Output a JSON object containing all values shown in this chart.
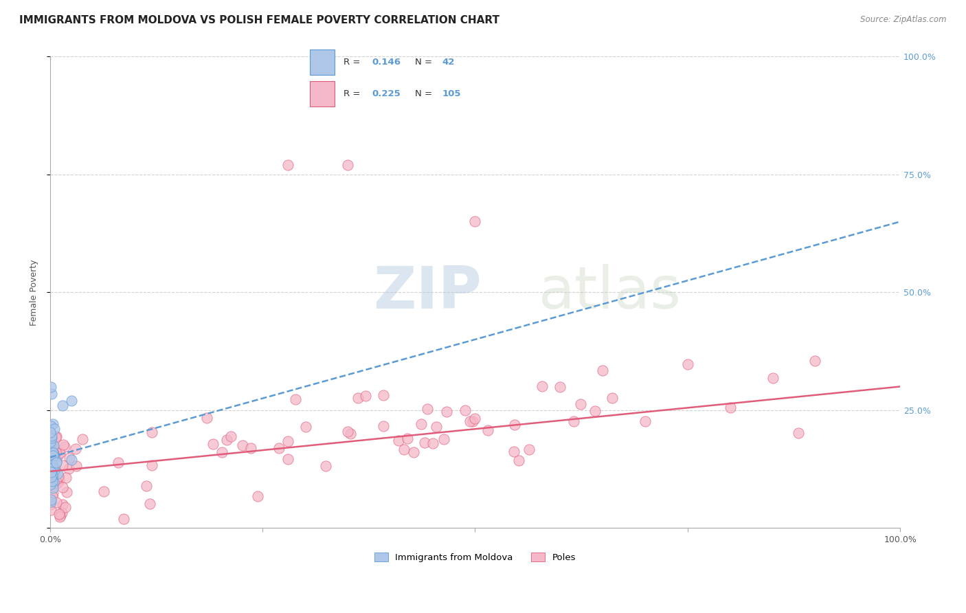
{
  "title": "IMMIGRANTS FROM MOLDOVA VS POLISH FEMALE POVERTY CORRELATION CHART",
  "source": "Source: ZipAtlas.com",
  "ylabel": "Female Poverty",
  "legend_entries": [
    {
      "label": "Immigrants from Moldova",
      "R": "0.146",
      "N": "42",
      "color": "#aec6e8",
      "line_color": "#5b9bd5"
    },
    {
      "label": "Poles",
      "R": "0.225",
      "N": "105",
      "color": "#f4b8c8",
      "line_color": "#e05c7a"
    }
  ],
  "watermark_zip": "ZIP",
  "watermark_atlas": "atlas",
  "background_color": "#ffffff",
  "grid_color": "#cccccc",
  "title_fontsize": 11,
  "axis_label_fontsize": 9,
  "tick_fontsize": 9,
  "right_ytick_color": "#5b9bd5",
  "blue_slope": 0.5,
  "blue_intercept": 0.15,
  "pink_slope": 0.18,
  "pink_intercept": 0.12
}
